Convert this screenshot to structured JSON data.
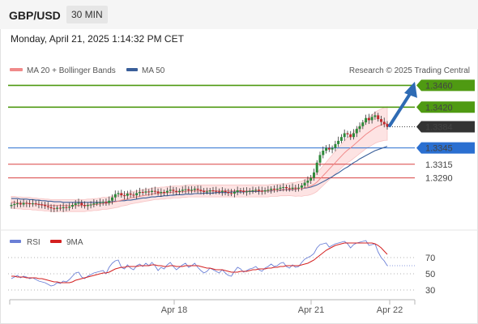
{
  "header": {
    "pair": "GBP/USD",
    "timeframe": "30 MIN"
  },
  "timestamp": "Monday, April 21, 2025 1:14:32 PM CET",
  "legend": {
    "ma20": "MA 20 + Bollinger Bands",
    "ma20_color": "#f08a8a",
    "ma50": "MA 50",
    "ma50_color": "#3a5f9a",
    "credit": "Research © 2025 Trading Central"
  },
  "levels": [
    {
      "value": "1.3460",
      "kind": "resistance",
      "color": "#4f9a12"
    },
    {
      "value": "1.3420",
      "kind": "resistance",
      "color": "#4f9a12"
    },
    {
      "value": "1.3384",
      "kind": "last",
      "color": "#333333"
    },
    {
      "value": "1.3345",
      "kind": "pivot",
      "color": "#2a6fd1"
    },
    {
      "value": "1.3315",
      "kind": "support",
      "color": "#d94040"
    },
    {
      "value": "1.3290",
      "kind": "support",
      "color": "#d94040"
    }
  ],
  "rsi_legend": {
    "rsi": "RSI",
    "rsi_color": "#6a7fd6",
    "ma": "9MA",
    "ma_color": "#d42020"
  },
  "rsi_ticks": [
    "70",
    "50",
    "30"
  ],
  "x_ticks": [
    "Apr 18",
    "Apr 21",
    "Apr 22"
  ],
  "chart_data": {
    "type": "candlestick",
    "instrument": "GBP/USD",
    "interval": "30 MIN",
    "price_ylim": [
      1.32,
      1.348
    ],
    "rsi_ylim": [
      20,
      80
    ],
    "rsi_reference_lines": [
      70,
      50,
      30
    ],
    "close": [
      1.324,
      1.3242,
      1.3243,
      1.3241,
      1.3244,
      1.3243,
      1.3242,
      1.3243,
      1.3242,
      1.3241,
      1.324,
      1.3238,
      1.3236,
      1.3234,
      1.3233,
      1.3235,
      1.3234,
      1.3236,
      1.3235,
      1.3237,
      1.324,
      1.3243,
      1.3244,
      1.324,
      1.3238,
      1.324,
      1.3241,
      1.3243,
      1.3244,
      1.3245,
      1.3246,
      1.3244,
      1.3248,
      1.3254,
      1.326,
      1.3262,
      1.3258,
      1.3257,
      1.3261,
      1.3259,
      1.3258,
      1.3262,
      1.3264,
      1.3263,
      1.3265,
      1.3264,
      1.3266,
      1.3265,
      1.3262,
      1.3264,
      1.3263,
      1.3266,
      1.3268,
      1.3266,
      1.3264,
      1.3266,
      1.3268,
      1.3269,
      1.3267,
      1.3268,
      1.327,
      1.3268,
      1.3266,
      1.3264,
      1.3265,
      1.3267,
      1.3266,
      1.3265,
      1.3264,
      1.3266,
      1.3264,
      1.3262,
      1.3261,
      1.3264,
      1.3267,
      1.3266,
      1.3264,
      1.3265,
      1.3266,
      1.3267,
      1.3268,
      1.3266,
      1.3265,
      1.3267,
      1.3268,
      1.327,
      1.3269,
      1.327,
      1.3272,
      1.3273,
      1.3271,
      1.327,
      1.3272,
      1.3271,
      1.3272,
      1.3276,
      1.3281,
      1.3285,
      1.329,
      1.33,
      1.3318,
      1.3332,
      1.334,
      1.3345,
      1.3342,
      1.3345,
      1.3352,
      1.3358,
      1.3365,
      1.3372,
      1.337,
      1.3365,
      1.3372,
      1.338,
      1.3385,
      1.3392,
      1.34,
      1.3396,
      1.3402,
      1.3405,
      1.3398,
      1.3393,
      1.3389,
      1.3384
    ],
    "ma20": [
      1.3245,
      1.3245,
      1.3244,
      1.3244,
      1.3243,
      1.3243,
      1.3243,
      1.3242,
      1.3242,
      1.3241,
      1.3241,
      1.324,
      1.324,
      1.3239,
      1.3239,
      1.3239,
      1.3239,
      1.3239,
      1.3239,
      1.3239,
      1.3239,
      1.3239,
      1.3239,
      1.3239,
      1.3239,
      1.324,
      1.324,
      1.3241,
      1.3241,
      1.3242,
      1.3243,
      1.3243,
      1.3244,
      1.3245,
      1.3246,
      1.3247,
      1.3249,
      1.325,
      1.3251,
      1.3253,
      1.3254,
      1.3255,
      1.3256,
      1.3257,
      1.3258,
      1.3259,
      1.326,
      1.3261,
      1.3261,
      1.3262,
      1.3262,
      1.3263,
      1.3263,
      1.3264,
      1.3264,
      1.3264,
      1.3265,
      1.3265,
      1.3266,
      1.3266,
      1.3266,
      1.3266,
      1.3266,
      1.3266,
      1.3266,
      1.3266,
      1.3266,
      1.3266,
      1.3266,
      1.3266,
      1.3266,
      1.3266,
      1.3266,
      1.3266,
      1.3266,
      1.3266,
      1.3266,
      1.3266,
      1.3266,
      1.3266,
      1.3266,
      1.3266,
      1.3266,
      1.3266,
      1.3266,
      1.3267,
      1.3267,
      1.3267,
      1.3268,
      1.3268,
      1.3268,
      1.3269,
      1.3269,
      1.3269,
      1.327,
      1.327,
      1.3272,
      1.3273,
      1.3275,
      1.3278,
      1.3282,
      1.3288,
      1.3294,
      1.33,
      1.3306,
      1.3312,
      1.3318,
      1.3324,
      1.333,
      1.3336,
      1.3341,
      1.3345,
      1.335,
      1.3355,
      1.336,
      1.3365,
      1.337,
      1.3374,
      1.3378,
      1.3382,
      1.3385,
      1.3387,
      1.3389,
      1.339
    ],
    "ma50": [
      1.3252,
      1.3252,
      1.3252,
      1.3251,
      1.3251,
      1.3251,
      1.325,
      1.325,
      1.3249,
      1.3249,
      1.3248,
      1.3248,
      1.3247,
      1.3247,
      1.3246,
      1.3246,
      1.3246,
      1.3245,
      1.3245,
      1.3245,
      1.3245,
      1.3245,
      1.3245,
      1.3245,
      1.3245,
      1.3245,
      1.3245,
      1.3245,
      1.3245,
      1.3245,
      1.3245,
      1.3245,
      1.3246,
      1.3246,
      1.3247,
      1.3247,
      1.3248,
      1.3248,
      1.3249,
      1.3249,
      1.325,
      1.3251,
      1.3252,
      1.3253,
      1.3253,
      1.3254,
      1.3255,
      1.3255,
      1.3256,
      1.3256,
      1.3257,
      1.3257,
      1.3258,
      1.3258,
      1.3259,
      1.3259,
      1.3259,
      1.326,
      1.326,
      1.326,
      1.3261,
      1.3261,
      1.3261,
      1.3262,
      1.3262,
      1.3262,
      1.3262,
      1.3263,
      1.3263,
      1.3263,
      1.3263,
      1.3263,
      1.3264,
      1.3264,
      1.3264,
      1.3264,
      1.3264,
      1.3265,
      1.3265,
      1.3265,
      1.3265,
      1.3265,
      1.3266,
      1.3266,
      1.3266,
      1.3266,
      1.3267,
      1.3267,
      1.3267,
      1.3268,
      1.3268,
      1.3268,
      1.3269,
      1.3269,
      1.327,
      1.327,
      1.3271,
      1.3272,
      1.3273,
      1.3275,
      1.3277,
      1.328,
      1.3283,
      1.3286,
      1.3289,
      1.3292,
      1.3296,
      1.3299,
      1.3303,
      1.3307,
      1.331,
      1.3314,
      1.3318,
      1.3321,
      1.3325,
      1.3328,
      1.3331,
      1.3334,
      1.3337,
      1.334,
      1.3342,
      1.3344,
      1.3346,
      1.3348
    ],
    "rsi": [
      44,
      46,
      48,
      45,
      47,
      46,
      44,
      45,
      43,
      41,
      40,
      39,
      37,
      35,
      36,
      39,
      38,
      41,
      40,
      43,
      47,
      51,
      52,
      46,
      44,
      47,
      49,
      51,
      52,
      53,
      54,
      50,
      58,
      63,
      66,
      67,
      58,
      56,
      61,
      57,
      55,
      60,
      62,
      59,
      63,
      60,
      64,
      60,
      54,
      58,
      56,
      61,
      64,
      59,
      55,
      58,
      61,
      63,
      58,
      60,
      63,
      58,
      54,
      51,
      53,
      57,
      55,
      53,
      51,
      55,
      51,
      48,
      47,
      53,
      58,
      56,
      52,
      54,
      56,
      57,
      59,
      55,
      53,
      57,
      59,
      62,
      59,
      60,
      63,
      64,
      59,
      57,
      61,
      58,
      59,
      64,
      68,
      70,
      72,
      75,
      82,
      86,
      87,
      88,
      83,
      85,
      87,
      88,
      89,
      90,
      87,
      82,
      86,
      88,
      89,
      90,
      91,
      85,
      86,
      87,
      77,
      70,
      66,
      60
    ],
    "rsi_ma9": [
      47,
      47,
      46,
      46,
      46,
      45,
      45,
      45,
      45,
      44,
      44,
      43,
      42,
      41,
      40,
      40,
      39,
      39,
      39,
      39,
      40,
      42,
      43,
      44,
      45,
      46,
      47,
      48,
      49,
      50,
      51,
      51,
      52,
      54,
      56,
      57,
      58,
      58,
      59,
      59,
      59,
      59,
      60,
      60,
      60,
      60,
      61,
      61,
      60,
      60,
      59,
      59,
      60,
      60,
      59,
      59,
      59,
      60,
      60,
      60,
      60,
      60,
      59,
      58,
      57,
      57,
      56,
      55,
      55,
      55,
      54,
      53,
      52,
      52,
      52,
      53,
      53,
      53,
      54,
      55,
      55,
      56,
      56,
      56,
      57,
      57,
      58,
      58,
      59,
      59,
      60,
      60,
      60,
      60,
      60,
      61,
      62,
      63,
      65,
      67,
      70,
      73,
      76,
      79,
      81,
      83,
      85,
      86,
      87,
      88,
      88,
      88,
      88,
      88,
      88,
      88,
      88,
      88,
      88,
      87,
      85,
      82,
      78,
      74
    ]
  }
}
